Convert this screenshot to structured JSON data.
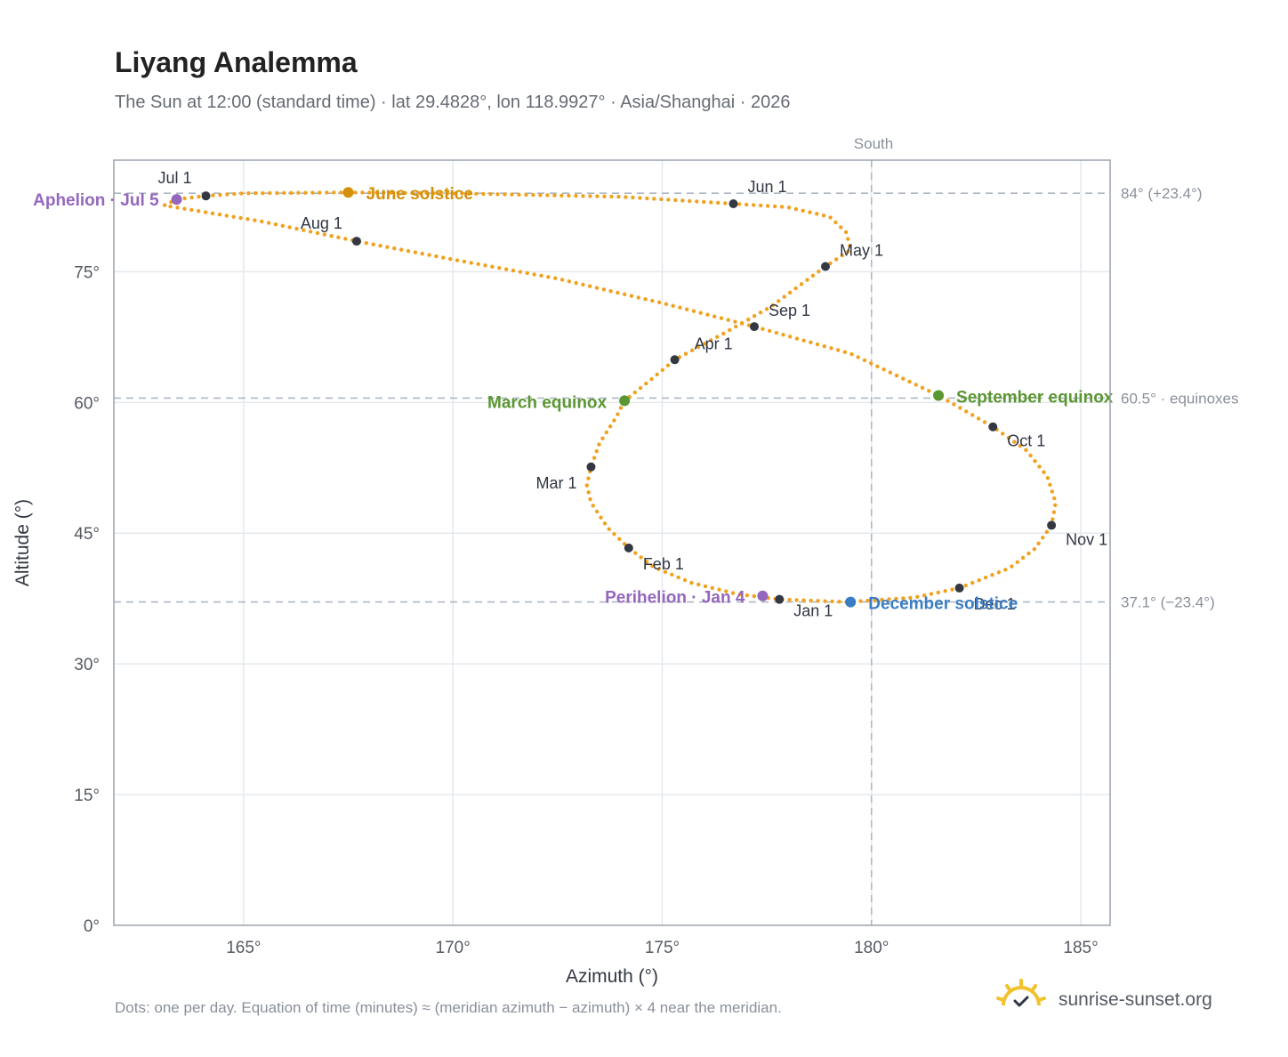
{
  "header": {
    "title": "Liyang Analemma",
    "subtitle": "The Sun at 12:00 (standard time) · lat 29.4828°, lon 118.9927° · Asia/Shanghai · 2026"
  },
  "footnote": "Dots: one per day. Equation of time (minutes) ≈ (meridian azimuth − azimuth) × 4 near the meridian.",
  "brand": {
    "name": "sunrise-sunset.org",
    "logo_icon": "sun-check-icon",
    "logo_color": "#f2c12e"
  },
  "chart_data": {
    "type": "scatter",
    "xlabel": "Azimuth (°)",
    "ylabel": "Altitude (°)",
    "xlim": [
      161.9,
      185.7
    ],
    "ylim": [
      0,
      87.8
    ],
    "x_ticks": [
      165,
      170,
      175,
      180,
      185
    ],
    "y_ticks": [
      0,
      15,
      30,
      45,
      60,
      75
    ],
    "tick_suffix": "°",
    "grid": true,
    "colors": {
      "path": "#f0a21e",
      "month_marker": "#333842",
      "solstice_june": "#d4900c",
      "solstice_dec": "#3b7dc4",
      "equinox": "#5a9632",
      "apsis": "#9467bd",
      "reference_line": "#aeb8c2",
      "grid": "#e4e9ee",
      "frame": "#9aa4ae"
    },
    "meridian": {
      "x": 180,
      "label": "South"
    },
    "reference_lines": [
      {
        "y": 84.0,
        "label": "84° (+23.4°)"
      },
      {
        "y": 60.5,
        "label": "60.5° · equinoxes"
      },
      {
        "y": 37.1,
        "label": "37.1° (−23.4°)"
      }
    ],
    "month_markers": [
      {
        "label": "Jan 1",
        "x": 177.8,
        "y": 37.4
      },
      {
        "label": "Feb 1",
        "x": 174.2,
        "y": 43.3
      },
      {
        "label": "Mar 1",
        "x": 173.3,
        "y": 52.6
      },
      {
        "label": "Apr 1",
        "x": 175.3,
        "y": 64.9
      },
      {
        "label": "May 1",
        "x": 178.9,
        "y": 75.6
      },
      {
        "label": "Jun 1",
        "x": 176.7,
        "y": 82.8
      },
      {
        "label": "Jul 1",
        "x": 164.1,
        "y": 83.7
      },
      {
        "label": "Aug 1",
        "x": 167.7,
        "y": 78.5
      },
      {
        "label": "Sep 1",
        "x": 177.2,
        "y": 68.7
      },
      {
        "label": "Oct 1",
        "x": 182.9,
        "y": 57.2
      },
      {
        "label": "Nov 1",
        "x": 184.3,
        "y": 45.9
      },
      {
        "label": "Dec 1",
        "x": 182.1,
        "y": 38.7
      }
    ],
    "events": [
      {
        "label": "June solstice",
        "x": 167.5,
        "y": 84.1,
        "kind": "solstice_june"
      },
      {
        "label": "December solstice",
        "x": 179.5,
        "y": 37.1,
        "kind": "solstice_dec"
      },
      {
        "label": "March equinox",
        "x": 174.1,
        "y": 60.2,
        "kind": "equinox"
      },
      {
        "label": "September equinox",
        "x": 181.6,
        "y": 60.8,
        "kind": "equinox"
      },
      {
        "label": "Aphelion · Jul 5",
        "x": 163.4,
        "y": 83.3,
        "kind": "apsis"
      },
      {
        "label": "Perihelion · Jan 4",
        "x": 177.4,
        "y": 37.8,
        "kind": "apsis"
      }
    ],
    "path_points": [
      [
        179.4,
        37.1
      ],
      [
        177.8,
        37.4
      ],
      [
        176.8,
        38.0
      ],
      [
        175.7,
        39.3
      ],
      [
        174.8,
        41.1
      ],
      [
        174.2,
        43.3
      ],
      [
        173.7,
        45.6
      ],
      [
        173.3,
        48.5
      ],
      [
        173.2,
        50.5
      ],
      [
        173.3,
        52.6
      ],
      [
        173.5,
        55.3
      ],
      [
        173.9,
        58.3
      ],
      [
        174.1,
        60.2
      ],
      [
        174.7,
        62.5
      ],
      [
        175.3,
        64.9
      ],
      [
        176.5,
        68.0
      ],
      [
        177.6,
        71.0
      ],
      [
        178.9,
        75.6
      ],
      [
        179.5,
        77.5
      ],
      [
        179.4,
        79.5
      ],
      [
        179.0,
        81.3
      ],
      [
        178.0,
        82.4
      ],
      [
        176.7,
        82.8
      ],
      [
        174.0,
        83.6
      ],
      [
        170.0,
        84.0
      ],
      [
        167.5,
        84.1
      ],
      [
        165.0,
        84.0
      ],
      [
        164.1,
        83.7
      ],
      [
        163.4,
        83.3
      ],
      [
        163.1,
        82.6
      ],
      [
        165.4,
        80.8
      ],
      [
        167.7,
        78.5
      ],
      [
        170.0,
        76.4
      ],
      [
        172.5,
        74.2
      ],
      [
        175.0,
        71.4
      ],
      [
        177.2,
        68.7
      ],
      [
        179.5,
        65.6
      ],
      [
        181.6,
        60.8
      ],
      [
        182.9,
        57.2
      ],
      [
        183.7,
        54.5
      ],
      [
        184.2,
        51.5
      ],
      [
        184.4,
        48.5
      ],
      [
        184.3,
        45.9
      ],
      [
        183.9,
        43.2
      ],
      [
        183.3,
        41.0
      ],
      [
        182.1,
        38.7
      ],
      [
        181.0,
        37.6
      ],
      [
        179.4,
        37.1
      ]
    ]
  }
}
